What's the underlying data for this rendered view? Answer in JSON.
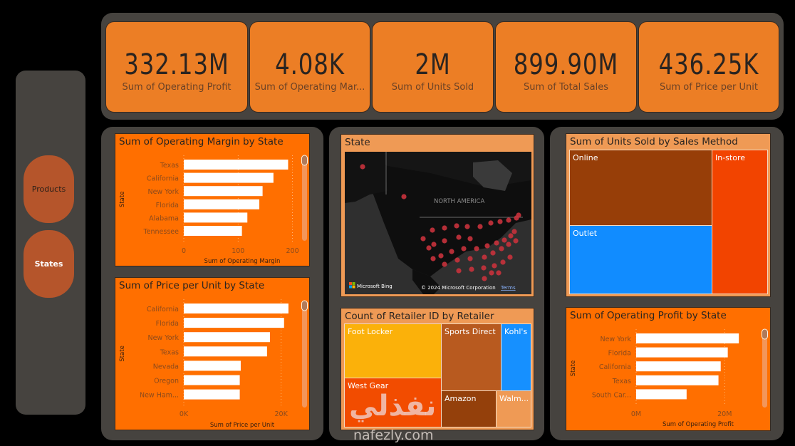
{
  "colors": {
    "background": "#000000",
    "panel": "#46433f",
    "kpi_card": "#ec7e25",
    "chart_card": "#ff6f00",
    "peach_card": "#ef9a55",
    "nav_button": "#b5552b",
    "bar": "#ffffff",
    "map_dot": "#c8323c"
  },
  "nav": {
    "items": [
      {
        "label": "Products",
        "active": false
      },
      {
        "label": "States",
        "active": true
      }
    ]
  },
  "kpis": [
    {
      "value": "332.13M",
      "label": "Sum of Operating Profit"
    },
    {
      "value": "4.08K",
      "label": "Sum of Operating Mar..."
    },
    {
      "value": "2M",
      "label": "Sum of Units Sold"
    },
    {
      "value": "899.90M",
      "label": "Sum of Total Sales"
    },
    {
      "value": "436.25K",
      "label": "Sum of Price per Unit"
    }
  ],
  "map": {
    "title": "State",
    "region_label": "NORTH AMERICA",
    "attribution_logo": "Microsoft Bing",
    "copyright": "© 2024 Microsoft Corporation",
    "terms_link": "Terms"
  },
  "retailer_treemap": {
    "title": "Count of Retailer ID by Retailer",
    "cells": [
      {
        "label": "Foot Locker",
        "color": "#fbb10a"
      },
      {
        "label": "West Gear",
        "color": "#f24c00"
      },
      {
        "label": "Sports Direct",
        "color": "#b85a1f"
      },
      {
        "label": "Kohl's",
        "color": "#1690ff"
      },
      {
        "label": "Amazon",
        "color": "#94400b"
      },
      {
        "label": "Walm...",
        "color": "#ef9a55"
      }
    ]
  },
  "sales_method_treemap": {
    "title": "Sum of Units Sold by Sales Method",
    "cells": [
      {
        "label": "Online",
        "color": "#973e08"
      },
      {
        "label": "Outlet",
        "color": "#118cff"
      },
      {
        "label": "In-store",
        "color": "#f24400"
      }
    ]
  },
  "watermark": {
    "arabic": "نفذلي",
    "latin": "nafezly.com"
  },
  "chart_data": [
    {
      "id": "operating-margin",
      "type": "bar",
      "orientation": "horizontal",
      "title": "Sum of Operating Margin by State",
      "xlabel": "Sum of Operating Margin",
      "ylabel": "State",
      "categories": [
        "Texas",
        "California",
        "New York",
        "Florida",
        "Alabama",
        "Tennessee"
      ],
      "values": [
        192,
        165,
        145,
        139,
        117,
        107
      ],
      "xlim": [
        0,
        215
      ],
      "xticks": [
        0,
        100,
        200
      ],
      "xtick_labels": [
        "0",
        "100",
        "200"
      ],
      "grid": true
    },
    {
      "id": "price-per-unit",
      "type": "bar",
      "orientation": "horizontal",
      "title": "Sum of Price per Unit by State",
      "xlabel": "Sum of Price per Unit",
      "ylabel": "State",
      "categories": [
        "California",
        "Florida",
        "New York",
        "Texas",
        "Nevada",
        "Oregon",
        "New Ham..."
      ],
      "values": [
        21500,
        20600,
        17700,
        17100,
        11700,
        11500,
        11500
      ],
      "xlim": [
        0,
        24000
      ],
      "xticks": [
        0,
        20000
      ],
      "xtick_labels": [
        "0K",
        "20K"
      ],
      "grid": true
    },
    {
      "id": "operating-profit",
      "type": "bar",
      "orientation": "horizontal",
      "title": "Sum of Operating Profit by State",
      "xlabel": "Sum of Operating Profit",
      "ylabel": "State",
      "categories": [
        "New York",
        "Florida",
        "California",
        "Texas",
        "South Car..."
      ],
      "values": [
        23200000,
        20700000,
        19100000,
        18600000,
        11400000
      ],
      "xlim": [
        0,
        28000000
      ],
      "xticks": [
        0,
        20000000
      ],
      "xtick_labels": [
        "0M",
        "20M"
      ],
      "grid": true
    }
  ]
}
